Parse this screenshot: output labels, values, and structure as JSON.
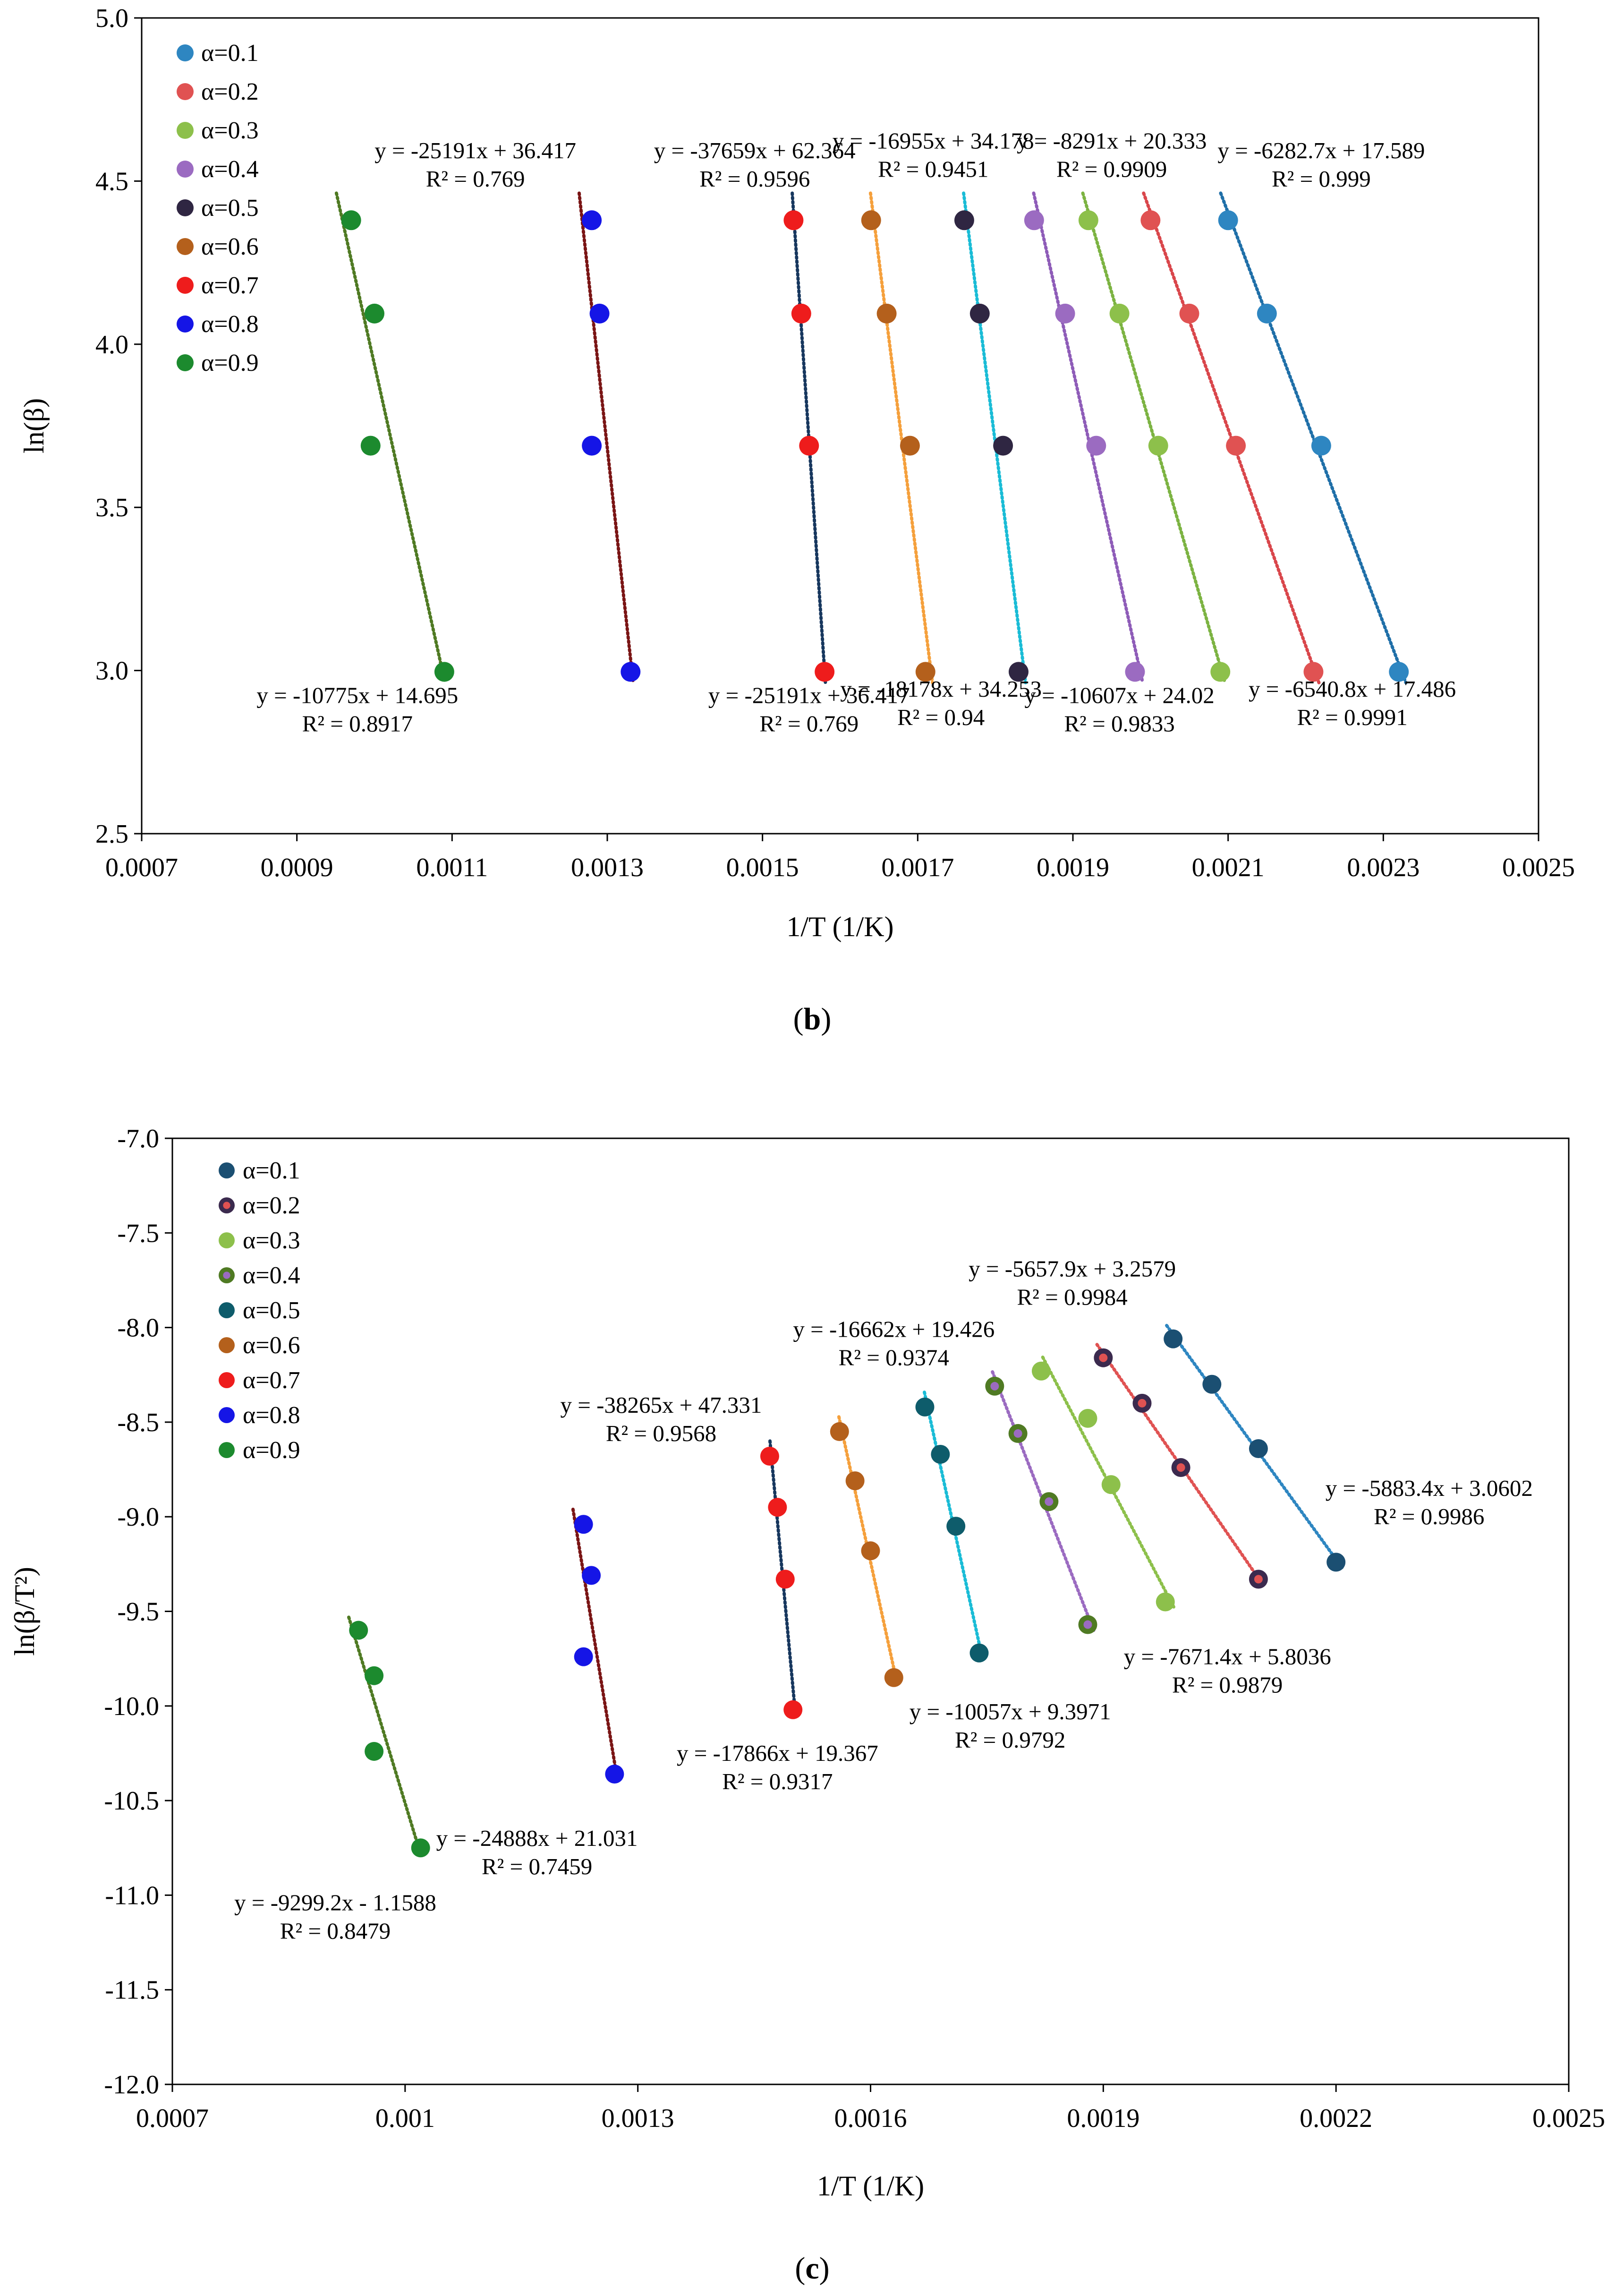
{
  "panels": {
    "b": {
      "open": "(",
      "letter": "b",
      "close": ")"
    },
    "c": {
      "open": "(",
      "letter": "c",
      "close": ")"
    }
  },
  "chart_data": [
    {
      "type": "scatter",
      "id": "b",
      "xlabel": "1/T (1/K)",
      "ylabel": "ln(β)",
      "xlim": [
        0.0007,
        0.0025
      ],
      "ylim": [
        2.5,
        5.0
      ],
      "xticks": [
        "0.0007",
        "0.0009",
        "0.0011",
        "0.0013",
        "0.0015",
        "0.0017",
        "0.0019",
        "0.0021",
        "0.0023",
        "0.0025"
      ],
      "yticks": [
        "2.5",
        "3.0",
        "3.5",
        "4.0",
        "4.5",
        "5.0"
      ],
      "legend_position": "top-left",
      "series": [
        {
          "name": "α=0.1",
          "color": "#2E86C1",
          "trend_color": "#1F6FA8",
          "x": [
            0.0021,
            0.00215,
            0.00222,
            0.00232
          ],
          "y": [
            4.38,
            4.094,
            3.689,
            2.996
          ],
          "trend_x": [
            0.0021,
            0.00232
          ]
        },
        {
          "name": "α=0.2",
          "color": "#E05252",
          "trend_color": "#D9464B",
          "x": [
            0.002,
            0.00205,
            0.00211,
            0.00221
          ],
          "y": [
            4.38,
            4.094,
            3.689,
            2.996
          ],
          "trend_x": [
            0.002,
            0.00221
          ]
        },
        {
          "name": "α=0.3",
          "color": "#8DC04B",
          "trend_color": "#7CB342",
          "x": [
            0.00192,
            0.00196,
            0.00201,
            0.00209
          ],
          "y": [
            4.38,
            4.094,
            3.689,
            2.996
          ],
          "trend_x": [
            0.00192,
            0.00209
          ]
        },
        {
          "name": "α=0.4",
          "color": "#9B6BC1",
          "trend_color": "#8E5CB8",
          "x": [
            0.00185,
            0.00189,
            0.00193,
            0.00198
          ],
          "y": [
            4.38,
            4.094,
            3.689,
            2.996
          ],
          "trend_x": [
            0.00184,
            0.00197
          ]
        },
        {
          "name": "α=0.5",
          "color": "#2F2642",
          "trend_color": "#1ABCD6",
          "x": [
            0.00176,
            0.00178,
            0.00181,
            0.00183
          ],
          "y": [
            4.38,
            4.094,
            3.689,
            2.996
          ],
          "trend_x": [
            0.00175,
            0.00174
          ]
        },
        {
          "name": "α=0.6",
          "color": "#B4601C",
          "trend_color": "#F5A03C",
          "x": [
            0.00164,
            0.00166,
            0.00169,
            0.00171
          ],
          "y": [
            4.38,
            4.094,
            3.689,
            2.996
          ],
          "trend_x": [
            0.00164,
            0.00171
          ]
        },
        {
          "name": "α=0.7",
          "color": "#EE1C1C",
          "trend_color": "#17375E",
          "x": [
            0.00154,
            0.00155,
            0.00156,
            0.00158
          ],
          "y": [
            4.38,
            4.094,
            3.689,
            2.996
          ],
          "trend_x": [
            0.001542,
            0.001573
          ]
        },
        {
          "name": "α=0.8",
          "color": "#1515E6",
          "trend_color": "#7A1515",
          "x": [
            0.00128,
            0.00129,
            0.00128,
            0.00133
          ],
          "y": [
            4.38,
            4.094,
            3.689,
            2.996
          ],
          "trend_x": [
            0.00128,
            0.00132
          ]
        },
        {
          "name": "α=0.9",
          "color": "#1C8A2E",
          "trend_color": "#4F7A23",
          "x": [
            0.00097,
            0.001,
            0.000995,
            0.00109
          ],
          "y": [
            4.38,
            4.094,
            3.689,
            2.996
          ],
          "trend_x": [
            0.00097,
            0.00109
          ]
        }
      ],
      "annotations": [
        {
          "line1": "y = -25191x + 36.417",
          "line2": "R² = 0.769",
          "x": 0.00113,
          "y": 4.57
        },
        {
          "line1": "y = -37659x + 62.364",
          "line2": "R² = 0.9596",
          "x": 0.00149,
          "y": 4.57
        },
        {
          "line1": "y = -16955x + 34.178",
          "line2": "R² = 0.9451",
          "x": 0.00172,
          "y": 4.6
        },
        {
          "line1": "y = -8291x + 20.333",
          "line2": "R² = 0.9909",
          "x": 0.00195,
          "y": 4.6
        },
        {
          "line1": "y = -6282.7x + 17.589",
          "line2": "R² = 0.999",
          "x": 0.00222,
          "y": 4.57
        },
        {
          "line1": "y = -10775x + 14.695",
          "line2": "R² = 0.8917",
          "x": 0.000978,
          "y": 2.9
        },
        {
          "line1": "y = -25191x + 36.417",
          "line2": "R² = 0.769",
          "x": 0.00156,
          "y": 2.9
        },
        {
          "line1": "y = -18178x + 34.253",
          "line2": "R² = 0.94",
          "x": 0.00173,
          "y": 2.92
        },
        {
          "line1": "y = -10607x + 24.02",
          "line2": "R² = 0.9833",
          "x": 0.00196,
          "y": 2.9
        },
        {
          "line1": "y = -6540.8x + 17.486",
          "line2": "R² = 0.9991",
          "x": 0.00226,
          "y": 2.92
        }
      ]
    },
    {
      "type": "scatter",
      "id": "c",
      "xlabel": "1/T (1/K)",
      "ylabel": "ln(β/T²)",
      "xlim": [
        0.0007,
        0.0025
      ],
      "ylim": [
        -12.0,
        -7.0
      ],
      "xticks": [
        "0.0007",
        "0.001",
        "0.0013",
        "0.0016",
        "0.0019",
        "0.0022",
        "0.0025"
      ],
      "xtick_values": [
        0.0007,
        0.001,
        0.0013,
        0.0016,
        0.0019,
        0.0022,
        0.0025
      ],
      "yticks": [
        "-12.0",
        "-11.5",
        "-11.0",
        "-10.5",
        "-10.0",
        "-9.5",
        "-9.0",
        "-8.5",
        "-8.0",
        "-7.5",
        "-7.0"
      ],
      "legend_position": "top-left",
      "series": [
        {
          "name": "α=0.1",
          "color": "#1B4F72",
          "inner": "#1B4F72",
          "trend_color": "#2E86C1",
          "x": [
            0.00199,
            0.00204,
            0.0021,
            0.0022
          ],
          "y": [
            -8.06,
            -8.3,
            -8.64,
            -9.24
          ],
          "trend_x": [
            0.00199,
            0.0022
          ]
        },
        {
          "name": "α=0.2",
          "color": "#3B2A4E",
          "inner": "#E05252",
          "trend_color": "#E05252",
          "x": [
            0.0019,
            0.00195,
            0.002,
            0.0021
          ],
          "y": [
            -8.16,
            -8.4,
            -8.74,
            -9.33
          ],
          "trend_x": [
            0.0019,
            0.0021
          ]
        },
        {
          "name": "α=0.3",
          "color": "#8DC04B",
          "inner": "#8DC04B",
          "trend_color": "#8DC04B",
          "x": [
            0.00182,
            0.00188,
            0.00191,
            0.00198
          ],
          "y": [
            -8.23,
            -8.48,
            -8.83,
            -9.45
          ],
          "trend_x": [
            0.00182,
            0.00198
          ]
        },
        {
          "name": "α=0.4",
          "color": "#4F7A23",
          "inner": "#9B6BC1",
          "trend_color": "#9B6BC1",
          "x": [
            0.00176,
            0.00179,
            0.00183,
            0.00188
          ],
          "y": [
            -8.31,
            -8.56,
            -8.92,
            -9.57
          ],
          "trend_x": [
            0.00176,
            0.00188
          ]
        },
        {
          "name": "α=0.5",
          "color": "#0E5C6B",
          "inner": "#0E5C6B",
          "trend_color": "#1ABCD6",
          "x": [
            0.00167,
            0.00169,
            0.00171,
            0.00174
          ],
          "y": [
            -8.42,
            -8.67,
            -9.05,
            -9.72
          ],
          "trend_x": [
            0.00167,
            0.00173
          ]
        },
        {
          "name": "α=0.6",
          "color": "#B4601C",
          "inner": "#B4601C",
          "trend_color": "#F5A03C",
          "x": [
            0.00156,
            0.00158,
            0.0016,
            0.00163
          ],
          "y": [
            -8.55,
            -8.81,
            -9.18,
            -9.85
          ],
          "trend_x": [
            0.00156,
            0.00163
          ]
        },
        {
          "name": "α=0.7",
          "color": "#EE1C1C",
          "inner": "#EE1C1C",
          "trend_color": "#17375E",
          "x": [
            0.00147,
            0.00148,
            0.00149,
            0.0015
          ],
          "y": [
            -8.68,
            -8.95,
            -9.33,
            -10.02
          ],
          "trend_x": [
            0.00146,
            0.0015
          ]
        },
        {
          "name": "α=0.8",
          "color": "#1515E6",
          "inner": "#1515E6",
          "trend_color": "#7A1515",
          "x": [
            0.00123,
            0.00124,
            0.00123,
            0.00127
          ],
          "y": [
            -9.04,
            -9.31,
            -9.74,
            -10.36
          ],
          "trend_x": [
            0.00123,
            0.00127
          ]
        },
        {
          "name": "α=0.9",
          "color": "#1C8A2E",
          "inner": "#1C8A2E",
          "trend_color": "#4F7A23",
          "x": [
            0.00094,
            0.00096,
            0.00096,
            0.00102
          ],
          "y": [
            -9.6,
            -9.84,
            -10.24,
            -10.75
          ],
          "trend_x": [
            0.00094,
            0.00102
          ]
        }
      ],
      "annotations": [
        {
          "line1": "y = -5657.9x + 3.2579",
          "line2": "R² = 0.9984",
          "x": 0.00186,
          "y": -7.73
        },
        {
          "line1": "y = -16662x + 19.426",
          "line2": "R² = 0.9374",
          "x": 0.00163,
          "y": -8.05
        },
        {
          "line1": "y = -38265x + 47.331",
          "line2": "R² = 0.9568",
          "x": 0.00133,
          "y": -8.45
        },
        {
          "line1": "y = -5883.4x + 3.0602",
          "line2": "R² = 0.9986",
          "x": 0.00232,
          "y": -8.89
        },
        {
          "line1": "y = -7671.4x + 5.8036",
          "line2": "R² = 0.9879",
          "x": 0.00206,
          "y": -9.78
        },
        {
          "line1": "y = -10057x + 9.3971",
          "line2": "R² = 0.9792",
          "x": 0.00178,
          "y": -10.07
        },
        {
          "line1": "y = -17866x + 19.367",
          "line2": "R² = 0.9317",
          "x": 0.00148,
          "y": -10.29
        },
        {
          "line1": "y = -24888x + 21.031",
          "line2": "R² = 0.7459",
          "x": 0.00117,
          "y": -10.74
        },
        {
          "line1": "y = -9299.2x - 1.1588",
          "line2": "R² = 0.8479",
          "x": 0.00091,
          "y": -11.08
        }
      ]
    }
  ]
}
